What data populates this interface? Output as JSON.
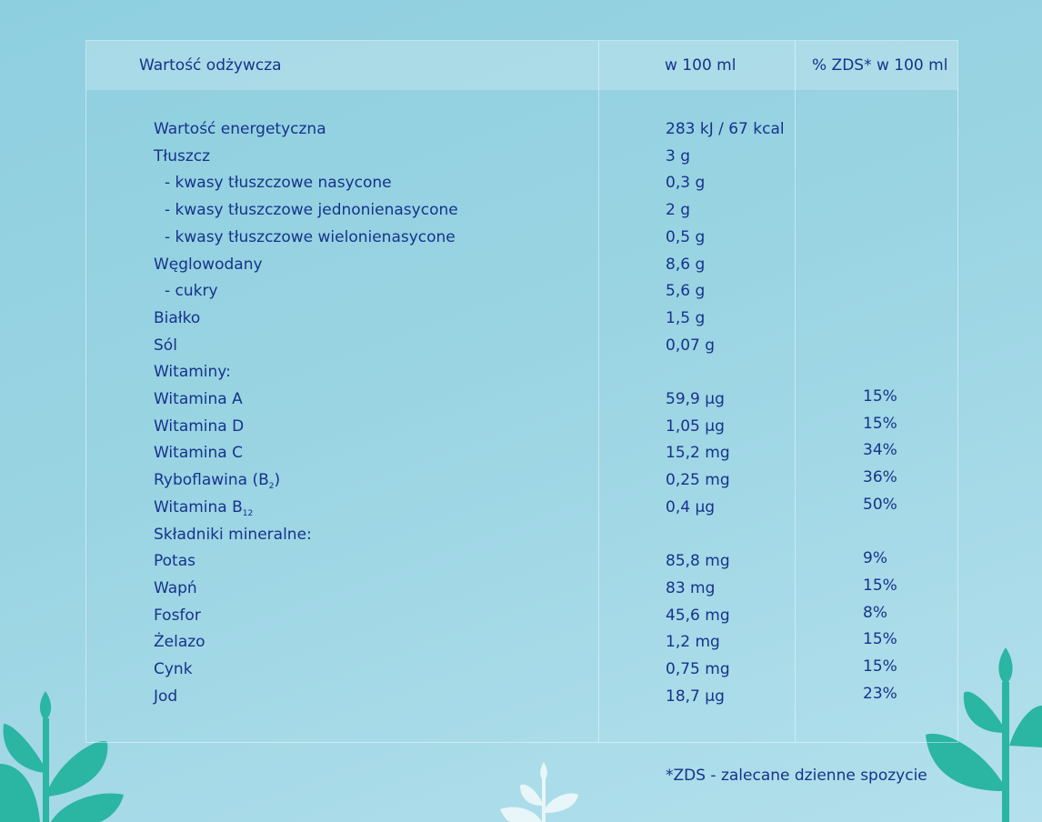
{
  "header": {
    "col_name": "Wartość odżywcza",
    "col_value": "w 100 ml",
    "col_pct": "% ZDS* w 100 ml"
  },
  "rows": [
    {
      "name": "Wartość energetyczna",
      "value": "283 kJ / 67 kcal",
      "pct": ""
    },
    {
      "name": "Tłuszcz",
      "value": "3 g",
      "pct": ""
    },
    {
      "name": "- kwasy tłuszczowe nasycone",
      "value": "0,3 g",
      "pct": ""
    },
    {
      "name": "- kwasy tłuszczowe jednonienasycone",
      "value": "2 g",
      "pct": ""
    },
    {
      "name": "- kwasy tłuszczowe wielonienasycone",
      "value": "0,5 g",
      "pct": ""
    },
    {
      "name": "Węglowodany",
      "value": "8,6 g",
      "pct": ""
    },
    {
      "name": "- cukry",
      "value": "5,6 g",
      "pct": ""
    },
    {
      "name": "Białko",
      "value": "1,5 g",
      "pct": ""
    },
    {
      "name": "Sól",
      "value": "0,07 g",
      "pct": ""
    },
    {
      "name": "Witaminy:",
      "value": "",
      "pct": ""
    },
    {
      "name": "Witamina A",
      "value": "59,9 µg",
      "pct": "15%"
    },
    {
      "name": "Witamina D",
      "value": "1,05 µg",
      "pct": "15%"
    },
    {
      "name": "Witamina C",
      "value": "15,2 mg",
      "pct": "34%"
    },
    {
      "name": "Ryboflawina (B",
      "name_sub": "2",
      "name_suffix": ")",
      "value": "0,25 mg",
      "pct": "36%"
    },
    {
      "name": "Witamina B",
      "name_sub": "12",
      "name_suffix": "",
      "value": "0,4 µg",
      "pct": "50%"
    },
    {
      "name": "Składniki mineralne:",
      "value": "",
      "pct": ""
    },
    {
      "name": "Potas",
      "value": "85,8 mg",
      "pct": "9%"
    },
    {
      "name": "Wapń",
      "value": "83 mg",
      "pct": "15%"
    },
    {
      "name": "Fosfor",
      "value": "45,6 mg",
      "pct": "8%"
    },
    {
      "name": "Żelazo",
      "value": "1,2 mg",
      "pct": "15%"
    },
    {
      "name": "Cynk",
      "value": "0,75 mg",
      "pct": "15%"
    },
    {
      "name": "Jod",
      "value": "18,7 µg",
      "pct": "23%"
    }
  ],
  "footnote": "*ZDS - zalecane dzienne spozycie",
  "colors": {
    "text": "#16338a",
    "plant_green": "#2bb5a3",
    "plant_white": "#e8f6f9"
  }
}
